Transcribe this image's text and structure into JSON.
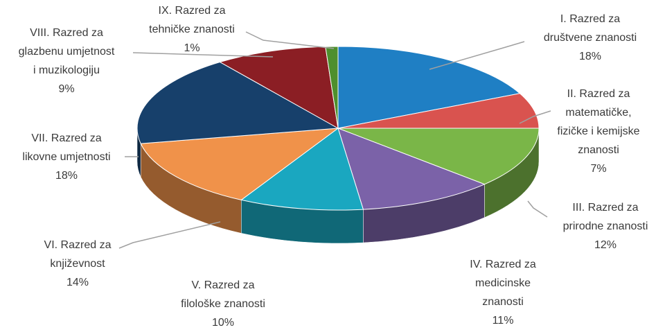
{
  "chart_data": {
    "type": "pie3d",
    "categories": [
      "I. Razred za\ndruštvene znanosti",
      "II. Razred za\nmatematičke,\nfizičke i kemijske\nznanosti",
      "III. Razred za\nprirodne znanosti",
      "IV. Razred za\nmedicinske\nznanosti",
      "V. Razred za\nfilološke znanosti",
      "VI. Razred za\nknjiževnost",
      "VII. Razred za\nlikovne umjetnosti",
      "VIII. Razred za\nglazbenu umjetnost\ni muzikologiju",
      "IX. Razred za\ntehničke znanosti"
    ],
    "values": [
      18,
      7,
      12,
      11,
      10,
      14,
      18,
      9,
      1
    ],
    "value_labels": [
      "18%",
      "7%",
      "12%",
      "11%",
      "10%",
      "14%",
      "18%",
      "9%",
      "1%"
    ],
    "colors": [
      "#1f7fc4",
      "#d9534f",
      "#7ab648",
      "#7b62a8",
      "#1aa7c0",
      "#f0924a",
      "#17406b",
      "#8b1e24",
      "#4e8f2d"
    ]
  }
}
